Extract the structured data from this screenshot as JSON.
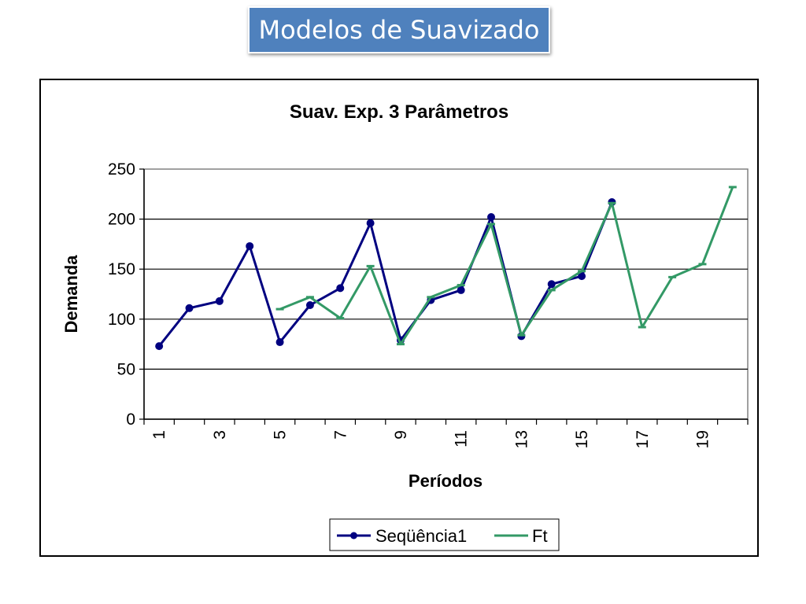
{
  "slide": {
    "title": "Modelos de Suavizado"
  },
  "colors": {
    "title_bg": "#4f81bd",
    "series1": "#000080",
    "series2": "#339966",
    "gridline": "#000000",
    "plot_border": "#808080"
  },
  "chart_data": {
    "type": "line",
    "title": "Suav. Exp. 3 Parâmetros",
    "xlabel": "Períodos",
    "ylabel": "Demanda",
    "ylim": [
      0,
      250
    ],
    "yticks": [
      "0",
      "50",
      "100",
      "150",
      "200",
      "250"
    ],
    "x": [
      1,
      2,
      3,
      4,
      5,
      6,
      7,
      8,
      9,
      10,
      11,
      12,
      13,
      14,
      15,
      16,
      17,
      18,
      19,
      20
    ],
    "xtick_labels": [
      "1",
      "3",
      "5",
      "7",
      "9",
      "11",
      "13",
      "15",
      "17",
      "19"
    ],
    "grid": true,
    "legend_position": "bottom",
    "series": [
      {
        "name": "Seqüência1",
        "color": "#000080",
        "marker": "circle",
        "values": [
          73,
          111,
          118,
          173,
          77,
          114,
          131,
          196,
          79,
          119,
          129,
          202,
          83,
          135,
          143,
          217,
          null,
          null,
          null,
          null
        ]
      },
      {
        "name": "Ft",
        "color": "#339966",
        "marker": "dash",
        "values": [
          null,
          null,
          null,
          null,
          110,
          122,
          101,
          153,
          75,
          122,
          134,
          195,
          84,
          129,
          148,
          216,
          92,
          142,
          155,
          232
        ]
      }
    ]
  }
}
